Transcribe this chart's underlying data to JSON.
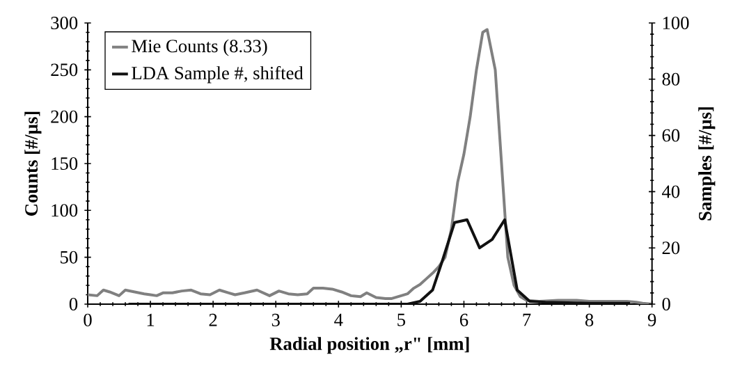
{
  "chart_data": {
    "type": "line",
    "xlabel": "Radial position „r\" [mm]",
    "ylabel": "Counts  [#/µs]",
    "y2label": "Samples [#/µs]",
    "xlim": [
      0,
      9
    ],
    "xticks": [
      0,
      1,
      2,
      3,
      4,
      5,
      6,
      7,
      8,
      9
    ],
    "ylim": [
      0,
      300
    ],
    "yticks": [
      0,
      50,
      100,
      150,
      200,
      250,
      300
    ],
    "y2lim": [
      0,
      100
    ],
    "y2ticks": [
      0,
      20,
      40,
      60,
      80,
      100
    ],
    "legend": "top left",
    "grid": false,
    "marker": "none",
    "line_style": "solid",
    "series": [
      {
        "name": "Mie Counts (8.33)",
        "color": "#808080",
        "x": [
          0,
          0.15,
          0.25,
          0.35,
          0.5,
          0.6,
          0.75,
          0.9,
          1.0,
          1.1,
          1.2,
          1.35,
          1.5,
          1.65,
          1.8,
          1.95,
          2.1,
          2.25,
          2.35,
          2.5,
          2.7,
          2.9,
          3.05,
          3.2,
          3.35,
          3.5,
          3.6,
          3.75,
          3.9,
          4.05,
          4.2,
          4.35,
          4.45,
          4.6,
          4.75,
          4.85,
          5.0,
          5.1,
          5.2,
          5.3,
          5.4,
          5.5,
          5.6,
          5.7,
          5.8,
          5.9,
          6.0,
          6.1,
          6.2,
          6.3,
          6.37,
          6.5,
          6.6,
          6.7,
          6.8,
          6.9,
          7.0,
          7.2,
          7.5,
          7.8,
          8.0,
          8.3,
          8.6,
          8.75,
          8.85,
          9.0
        ],
        "values": [
          10,
          9,
          15,
          13,
          9,
          15,
          13,
          11,
          10,
          9,
          12,
          12,
          14,
          15,
          11,
          10,
          15,
          12,
          10,
          12,
          15,
          9,
          14,
          11,
          10,
          11,
          17,
          17,
          16,
          13,
          9,
          8,
          12,
          7,
          6,
          6,
          9,
          11,
          17,
          21,
          27,
          33,
          40,
          50,
          80,
          130,
          160,
          200,
          250,
          290,
          293,
          250,
          150,
          50,
          20,
          8,
          4,
          3,
          4,
          4,
          3,
          3,
          3,
          2,
          1,
          0
        ]
      },
      {
        "name": "LDA Sample #, shifted",
        "color": "#111111",
        "axis": "y2",
        "x": [
          0.65,
          5.1,
          5.3,
          5.5,
          5.65,
          5.85,
          6.05,
          6.25,
          6.45,
          6.65,
          6.85,
          7.05,
          7.3,
          8.0,
          8.65
        ],
        "values": [
          0,
          0,
          1,
          5,
          15,
          29,
          30,
          20,
          23,
          30,
          5,
          1,
          0.7,
          0.3,
          0.3
        ]
      }
    ]
  }
}
